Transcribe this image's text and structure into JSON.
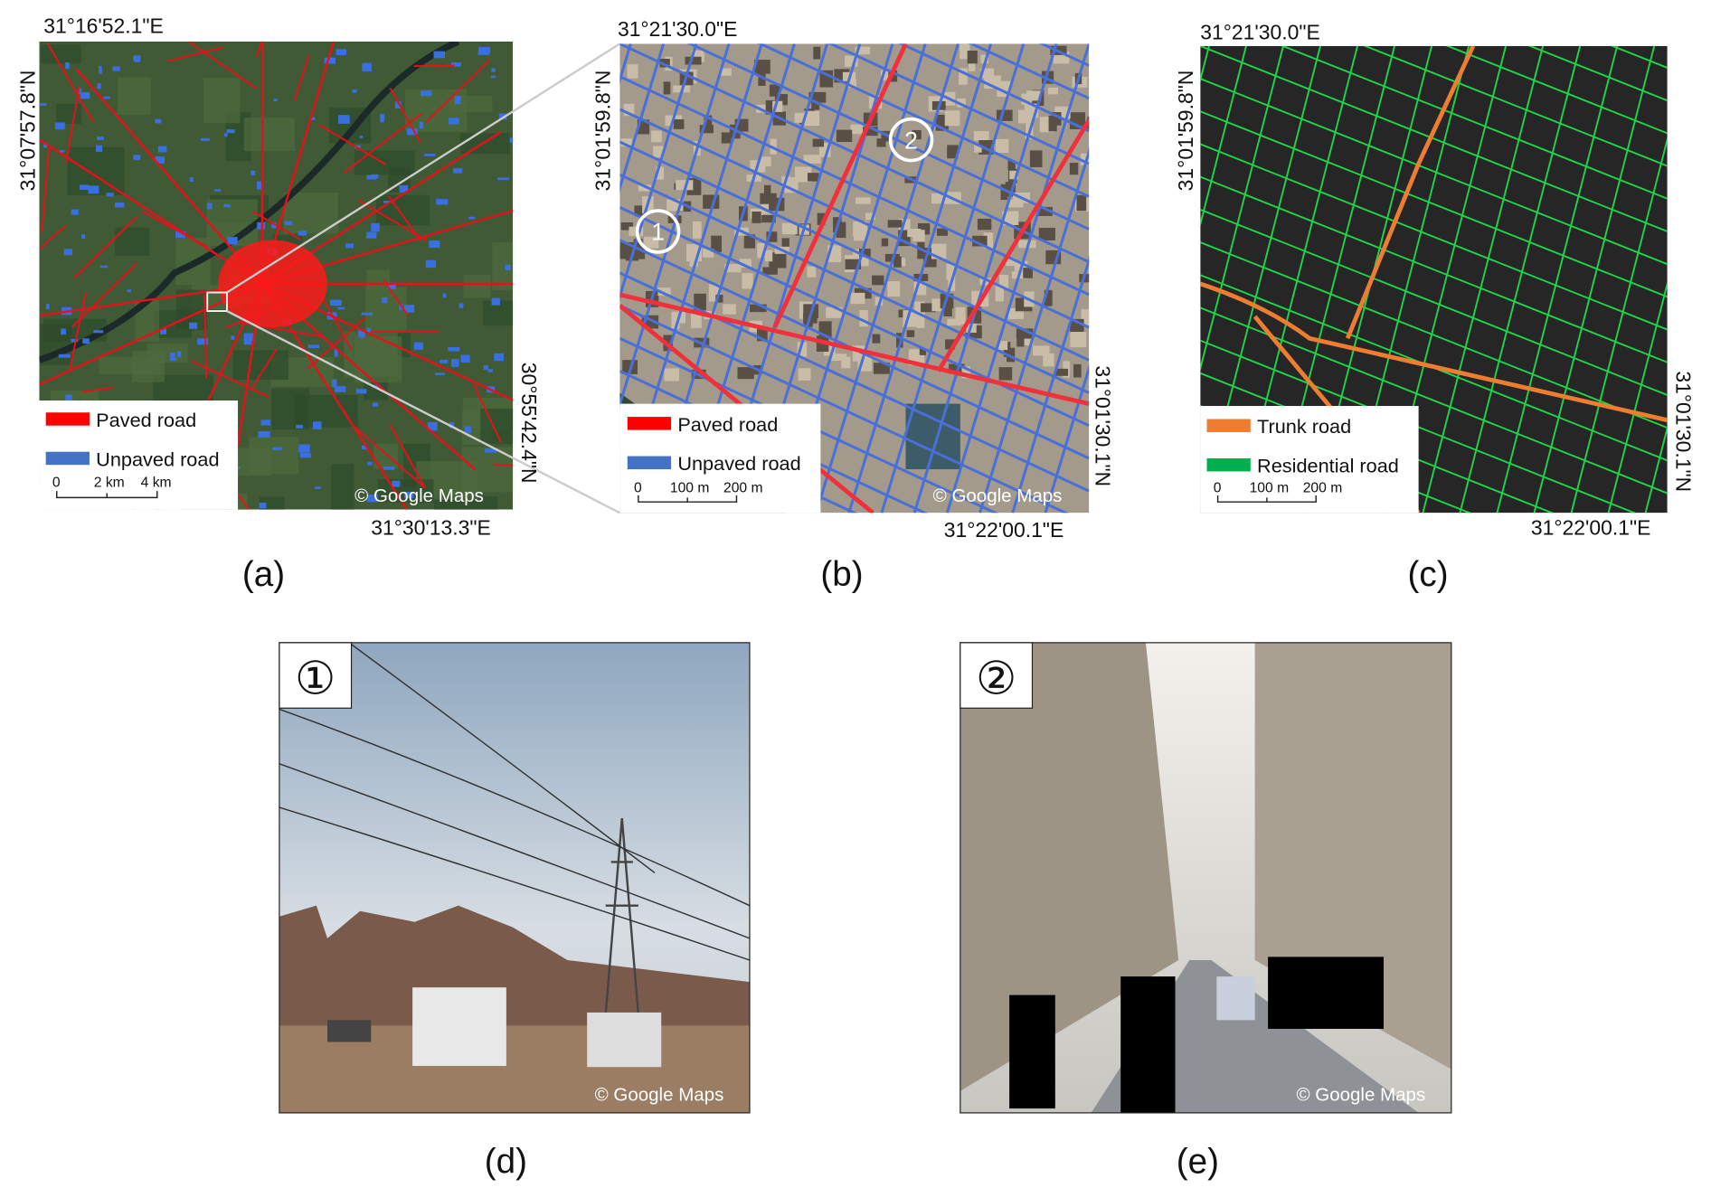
{
  "panels": {
    "a": {
      "top_coord": "31°16'52.1\"E",
      "left_coord": "31°07'57.8\"N",
      "right_coord": "30°55'42.4\"N",
      "bottom_coord": "31°30'13.3\"E",
      "legend": [
        "Paved road",
        "Unpaved road"
      ],
      "scale": [
        "0",
        "2 km",
        "4 km"
      ],
      "watermark": "© Google Maps",
      "caption": "(a)"
    },
    "b": {
      "top_coord": "31°21'30.0\"E",
      "left_coord": "31°01'59.8\"N",
      "right_coord": "31°01'30.1\"N",
      "bottom_coord": "31°22'00.1\"E",
      "markers": [
        "1",
        "2"
      ],
      "legend": [
        "Paved road",
        "Unpaved road"
      ],
      "scale": [
        "0",
        "100 m",
        "200 m"
      ],
      "watermark": "© Google Maps",
      "caption": "(b)"
    },
    "c": {
      "top_coord": "31°21'30.0\"E",
      "left_coord": "31°01'59.8\"N",
      "right_coord": "31°01'30.1\"N",
      "bottom_coord": "31°22'00.1\"E",
      "legend": [
        "Trunk road",
        "Residential road"
      ],
      "scale": [
        "0",
        "100 m",
        "200 m"
      ],
      "caption": "(c)"
    },
    "d": {
      "badge": "①",
      "watermark": "© Google Maps",
      "caption": "(d)"
    },
    "e": {
      "badge": "②",
      "watermark": "© Google Maps",
      "caption": "(e)"
    }
  }
}
